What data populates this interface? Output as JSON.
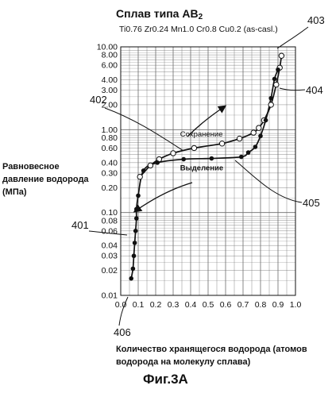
{
  "figure": {
    "title_main": "Сплав типа AB",
    "title_sub": "2",
    "formula": "Ti0.76 Zr0.24 Mn1.0 Cr0.8 Cu0.2 (as-casl.)",
    "ylabel": "Равновесное давление водорода (МПа)",
    "xlabel": "Количество хранящегося водорода (атомов водорода на молекулу сплава)",
    "caption": "Фиг.3А"
  },
  "references": {
    "r401": "401",
    "r402": "402",
    "r403": "403",
    "r404": "404",
    "r405": "405",
    "r406": "406"
  },
  "colors": {
    "ink": "#111111",
    "grid": "#6b6b6b",
    "background": "#ffffff"
  },
  "chart_data": {
    "type": "scatter",
    "xlabel": "Количество хранящегося водорода (атомов водорода на молекулу сплава)",
    "ylabel": "Равновесное давление водорода (МПа)",
    "xlim": [
      0.0,
      1.0
    ],
    "ylim": [
      0.01,
      10.0
    ],
    "yscale": "log",
    "grid": true,
    "x_ticks": [
      "0.0",
      "0.1",
      "0.2",
      "0.3",
      "0.4",
      "0.5",
      "0.6",
      "0.7",
      "0.8",
      "0.9",
      "1.0"
    ],
    "y_ticks": [
      {
        "value": 0.01,
        "label": "0.01"
      },
      {
        "value": 0.02,
        "label": "0.02"
      },
      {
        "value": 0.03,
        "label": "0.03"
      },
      {
        "value": 0.04,
        "label": "0.04"
      },
      {
        "value": 0.06,
        "label": "0.06"
      },
      {
        "value": 0.08,
        "label": "0.08"
      },
      {
        "value": 0.1,
        "label": "0.10"
      },
      {
        "value": 0.2,
        "label": "0.20"
      },
      {
        "value": 0.3,
        "label": "0.30"
      },
      {
        "value": 0.4,
        "label": "0.40"
      },
      {
        "value": 0.6,
        "label": "0.60"
      },
      {
        "value": 0.8,
        "label": "0.80"
      },
      {
        "value": 1.0,
        "label": "1.00"
      },
      {
        "value": 2.0,
        "label": "2.00"
      },
      {
        "value": 3.0,
        "label": "3.00"
      },
      {
        "value": 4.0,
        "label": "4.00"
      },
      {
        "value": 6.0,
        "label": "6.00"
      },
      {
        "value": 8.0,
        "label": "8.00"
      },
      {
        "value": 10.0,
        "label": "10.00"
      }
    ],
    "series": [
      {
        "name": "Сохранение",
        "marker": "open-circle",
        "points": [
          [
            0.11,
            0.27
          ],
          [
            0.17,
            0.37
          ],
          [
            0.22,
            0.44
          ],
          [
            0.3,
            0.52
          ],
          [
            0.42,
            0.6
          ],
          [
            0.58,
            0.68
          ],
          [
            0.68,
            0.78
          ],
          [
            0.76,
            0.92
          ],
          [
            0.79,
            1.05
          ],
          [
            0.82,
            1.3
          ],
          [
            0.86,
            2.0
          ],
          [
            0.89,
            3.5
          ],
          [
            0.91,
            5.6
          ],
          [
            0.92,
            7.8
          ]
        ]
      },
      {
        "name": "Выделение",
        "marker": "filled-circle",
        "points": [
          [
            0.06,
            0.016
          ],
          [
            0.07,
            0.021
          ],
          [
            0.075,
            0.03
          ],
          [
            0.08,
            0.043
          ],
          [
            0.085,
            0.06
          ],
          [
            0.09,
            0.085
          ],
          [
            0.09,
            0.11
          ],
          [
            0.1,
            0.16
          ],
          [
            0.13,
            0.32
          ],
          [
            0.21,
            0.4
          ],
          [
            0.36,
            0.44
          ],
          [
            0.52,
            0.45
          ],
          [
            0.69,
            0.47
          ],
          [
            0.73,
            0.53
          ],
          [
            0.77,
            0.62
          ],
          [
            0.8,
            0.84
          ],
          [
            0.83,
            1.3
          ],
          [
            0.86,
            2.4
          ],
          [
            0.88,
            4.1
          ],
          [
            0.9,
            5.3
          ]
        ]
      }
    ],
    "annotations": [
      "Сохранение",
      "Выделение"
    ]
  }
}
